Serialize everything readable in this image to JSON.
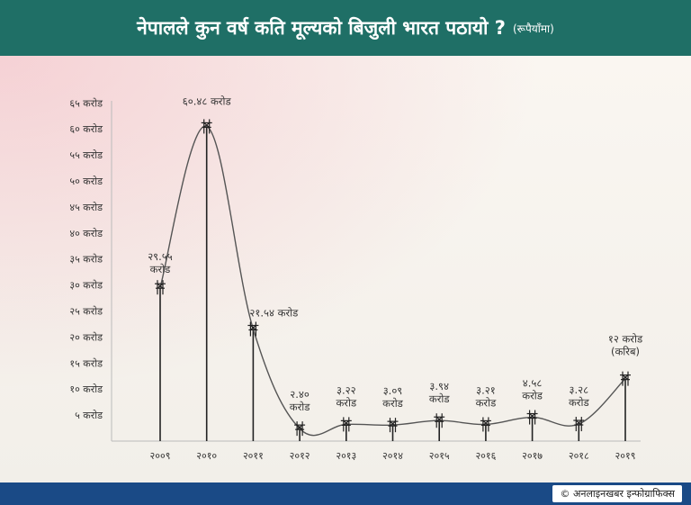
{
  "header": {
    "title": "नेपालले कुन वर्ष कति मूल्यको बिजुली भारत पठायो ?",
    "subtitle": "(रूपैयाँमा)"
  },
  "footer": {
    "credit": "© अनलाइनखबर इन्फोग्राफिक्स"
  },
  "colors": {
    "header_bg": "#1f6f66",
    "footer_bg": "#1a4a86",
    "line": "#555555"
  },
  "chart_data": {
    "type": "line",
    "title": "नेपालले कुन वर्ष कति मूल्यको बिजुली भारत पठायो ?",
    "unit": "करोड रूपैयाँ",
    "x": [
      "२००९",
      "२०१०",
      "२०११",
      "२०१२",
      "२०१३",
      "२०१४",
      "२०१५",
      "२०१६",
      "२०१७",
      "२०१८",
      "२०१९"
    ],
    "values": [
      29.55,
      60.48,
      21.54,
      2.4,
      3.22,
      3.09,
      3.94,
      3.21,
      4.58,
      3.28,
      12
    ],
    "data_labels": [
      [
        "२९.५५",
        "करोड"
      ],
      [
        "६०.४८ करोड"
      ],
      [
        "२१.५४ करोड"
      ],
      [
        "२.४०",
        "करोड"
      ],
      [
        "३.२२",
        "करोड"
      ],
      [
        "३.०९",
        "करोड"
      ],
      [
        "३.९४",
        "करोड"
      ],
      [
        "३.२१",
        "करोड"
      ],
      [
        "४.५८",
        "करोड"
      ],
      [
        "३.२८",
        "करोड"
      ],
      [
        "१२ करोड",
        "(करिब)"
      ]
    ],
    "y_ticks": [
      5,
      10,
      15,
      20,
      25,
      30,
      35,
      40,
      45,
      50,
      55,
      60,
      65
    ],
    "y_tick_labels": [
      "५ करोड",
      "१० करोड",
      "१५ करोड",
      "२० करोड",
      "२५ करोड",
      "३० करोड",
      "३५ करोड",
      "४० करोड",
      "४५ करोड",
      "५० करोड",
      "५५ करोड",
      "६० करोड",
      "६५ करोड"
    ],
    "ylim": [
      0,
      65
    ],
    "grid": false,
    "legend": "none"
  }
}
